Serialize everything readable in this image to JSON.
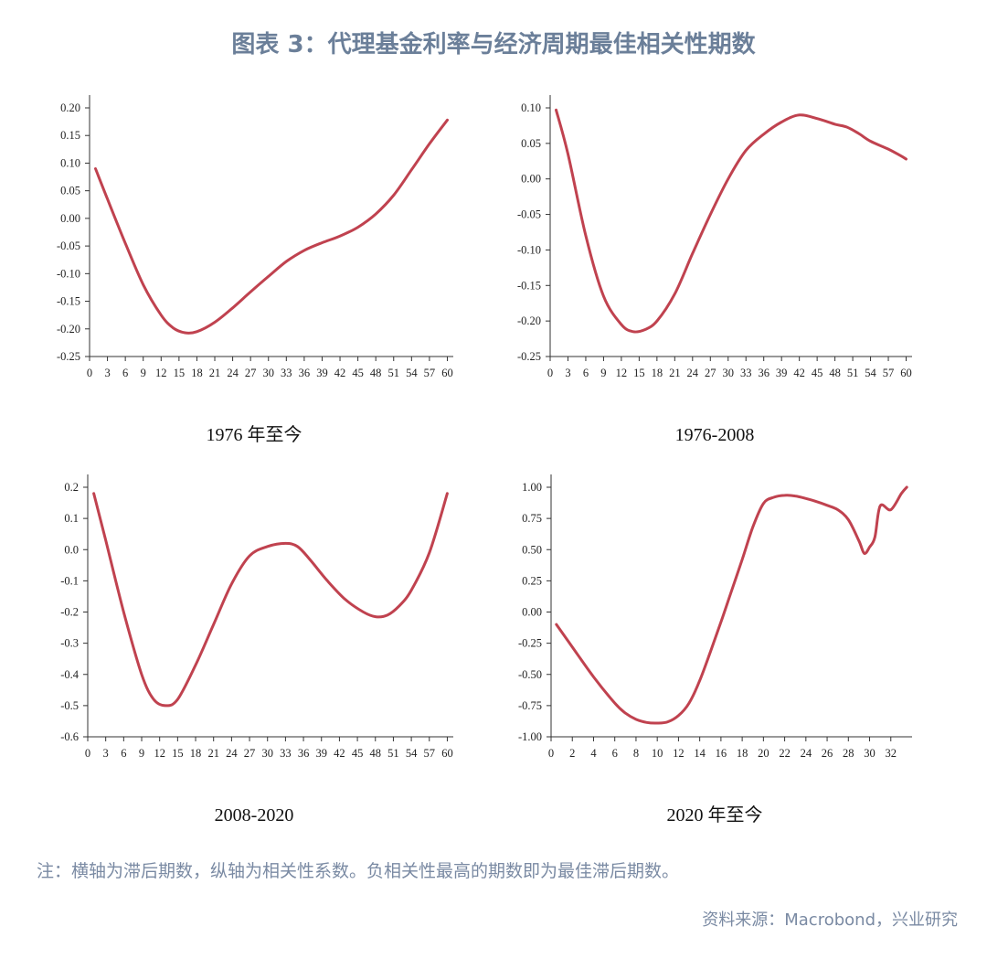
{
  "title": "图表 3：代理基金利率与经济周期最佳相关性期数",
  "note": "注：横轴为滞后期数，纵轴为相关性系数。负相关性最高的期数即为最佳滞后期数。",
  "source": "资料来源：Macrobond，兴业研究",
  "colors": {
    "series": "#c0424f",
    "title": "#6b7f99",
    "note": "#7a8aa3"
  },
  "chart_data": [
    {
      "type": "line",
      "caption": "1976 年至今",
      "xlim": [
        0,
        61
      ],
      "xticks": [
        0,
        3,
        6,
        9,
        12,
        15,
        18,
        21,
        24,
        27,
        30,
        33,
        36,
        39,
        42,
        45,
        48,
        51,
        54,
        57,
        60
      ],
      "ylim": [
        -0.25,
        0.2
      ],
      "yticks": [
        -0.25,
        -0.2,
        -0.15,
        -0.1,
        -0.05,
        0.0,
        0.05,
        0.1,
        0.15,
        0.2
      ],
      "ytick_decimals": 2,
      "x": [
        1,
        3,
        6,
        9,
        12,
        14,
        16,
        18,
        21,
        24,
        27,
        30,
        33,
        36,
        39,
        42,
        45,
        48,
        51,
        54,
        57,
        60
      ],
      "y": [
        0.09,
        0.035,
        -0.045,
        -0.12,
        -0.175,
        -0.198,
        -0.207,
        -0.205,
        -0.188,
        -0.162,
        -0.133,
        -0.105,
        -0.078,
        -0.058,
        -0.044,
        -0.032,
        -0.016,
        0.008,
        0.042,
        0.088,
        0.135,
        0.178
      ]
    },
    {
      "type": "line",
      "caption": "1976-2008",
      "xlim": [
        0,
        61
      ],
      "xticks": [
        0,
        3,
        6,
        9,
        12,
        15,
        18,
        21,
        24,
        27,
        30,
        33,
        36,
        39,
        42,
        45,
        48,
        51,
        54,
        57,
        60
      ],
      "ylim": [
        -0.25,
        0.1
      ],
      "yticks": [
        -0.25,
        -0.2,
        -0.15,
        -0.1,
        -0.05,
        0.0,
        0.05,
        0.1
      ],
      "ytick_decimals": 2,
      "x": [
        1,
        3,
        6,
        9,
        12,
        14,
        16,
        18,
        21,
        24,
        27,
        30,
        33,
        36,
        39,
        42,
        45,
        48,
        50,
        52,
        54,
        57,
        59,
        60
      ],
      "y": [
        0.097,
        0.035,
        -0.08,
        -0.165,
        -0.205,
        -0.215,
        -0.212,
        -0.2,
        -0.162,
        -0.105,
        -0.05,
        0.0,
        0.04,
        0.063,
        0.08,
        0.09,
        0.085,
        0.077,
        0.073,
        0.064,
        0.053,
        0.042,
        0.033,
        0.028
      ]
    },
    {
      "type": "line",
      "caption": "2008-2020",
      "xlim": [
        0,
        61
      ],
      "xticks": [
        0,
        3,
        6,
        9,
        12,
        15,
        18,
        21,
        24,
        27,
        30,
        33,
        36,
        39,
        42,
        45,
        48,
        51,
        54,
        57,
        60
      ],
      "ylim": [
        -0.6,
        0.2
      ],
      "yticks": [
        -0.6,
        -0.5,
        -0.4,
        -0.3,
        -0.2,
        -0.1,
        0.0,
        0.1,
        0.2
      ],
      "ytick_decimals": 1,
      "x": [
        1,
        3,
        6,
        9,
        11,
        13,
        15,
        18,
        21,
        24,
        27,
        30,
        33,
        35,
        37,
        40,
        43,
        46,
        48,
        50,
        52,
        54,
        57,
        60
      ],
      "y": [
        0.18,
        0.03,
        -0.2,
        -0.4,
        -0.48,
        -0.5,
        -0.48,
        -0.37,
        -0.24,
        -0.11,
        -0.02,
        0.01,
        0.02,
        0.01,
        -0.03,
        -0.1,
        -0.16,
        -0.2,
        -0.215,
        -0.21,
        -0.18,
        -0.13,
        -0.01,
        0.18
      ]
    },
    {
      "type": "line",
      "caption": "2020 年至今",
      "xlim": [
        0,
        34
      ],
      "xticks": [
        0,
        2,
        4,
        6,
        8,
        10,
        12,
        14,
        16,
        18,
        20,
        22,
        24,
        26,
        28,
        30,
        32
      ],
      "ylim": [
        -1.0,
        1.0
      ],
      "yticks": [
        -1.0,
        -0.75,
        -0.5,
        -0.25,
        0.0,
        0.25,
        0.5,
        0.75,
        1.0
      ],
      "ytick_decimals": 2,
      "x": [
        0.5,
        2,
        4,
        6,
        7,
        8,
        9,
        10,
        11,
        12,
        13,
        14,
        15,
        16,
        17,
        18,
        19,
        20,
        21,
        22,
        23,
        24,
        25,
        26,
        27,
        28,
        29,
        29.5,
        30,
        30.5,
        31,
        32,
        33,
        33.5
      ],
      "y": [
        -0.1,
        -0.28,
        -0.52,
        -0.73,
        -0.81,
        -0.86,
        -0.885,
        -0.89,
        -0.88,
        -0.83,
        -0.73,
        -0.55,
        -0.32,
        -0.08,
        0.17,
        0.42,
        0.68,
        0.87,
        0.92,
        0.935,
        0.93,
        0.91,
        0.885,
        0.855,
        0.82,
        0.74,
        0.57,
        0.47,
        0.52,
        0.6,
        0.85,
        0.82,
        0.95,
        1.0
      ]
    }
  ]
}
